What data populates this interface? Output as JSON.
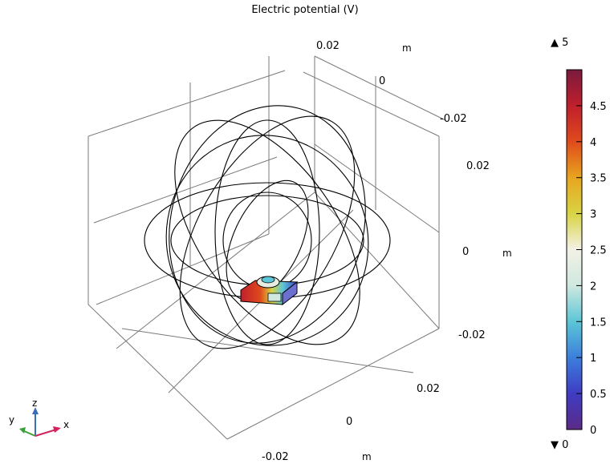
{
  "title": "Electric potential (V)",
  "chart_data": {
    "type": "heatmap",
    "title": "Electric potential (V)",
    "axes": {
      "x": {
        "ticks": [
          "0.02",
          "0",
          "-0.02"
        ],
        "unit": "m"
      },
      "y": {
        "ticks": [
          "0.02",
          "0",
          "-0.02"
        ],
        "unit": "m"
      },
      "z": {
        "ticks": [
          "0.02",
          "0",
          "-0.02"
        ],
        "unit": "m"
      }
    },
    "colorbar": {
      "min": 0,
      "max": 5,
      "max_label": "▲ 5",
      "min_label": "▼ 0",
      "ticks": [
        "4.5",
        "4",
        "3.5",
        "3",
        "2.5",
        "2",
        "1.5",
        "1",
        "0.5",
        "0"
      ],
      "colormap": [
        "#5b2a86",
        "#3f3cc4",
        "#3b7fdc",
        "#5cc6d6",
        "#cfe8e0",
        "#f3f1e6",
        "#d8d443",
        "#e8a51f",
        "#e04a1c",
        "#c01f2c",
        "#7a1a3e"
      ]
    },
    "triad": {
      "x": "x",
      "y": "y",
      "z": "z"
    }
  }
}
